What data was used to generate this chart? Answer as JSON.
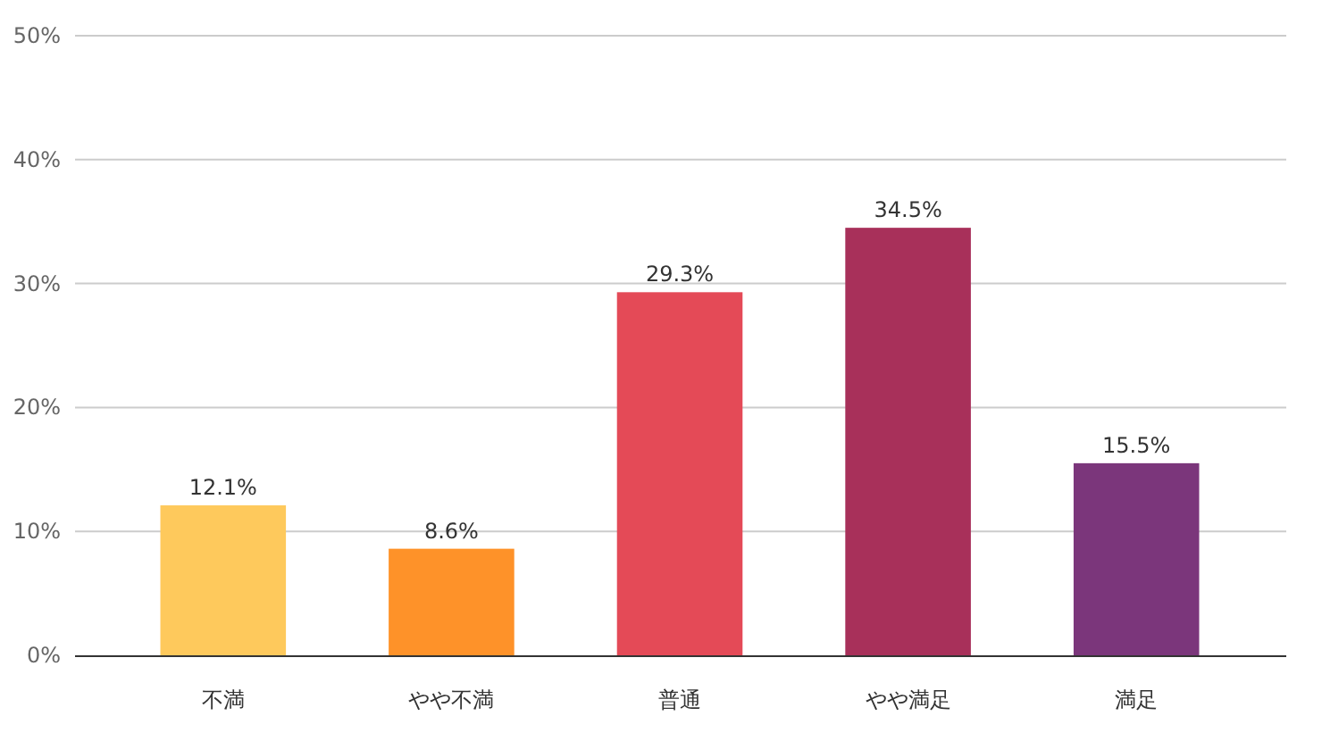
{
  "chart_data": {
    "type": "bar",
    "categories": [
      "不満",
      "やや不満",
      "普通",
      "やや満足",
      "満足"
    ],
    "values": [
      12.1,
      8.6,
      29.3,
      34.5,
      15.5
    ],
    "colors": [
      "#fec95c",
      "#fe9229",
      "#e44a57",
      "#a8305a",
      "#7b367b"
    ],
    "value_labels": [
      "12.1%",
      "8.6%",
      "29.3%",
      "34.5%",
      "15.5%"
    ],
    "ylim": [
      0,
      50
    ],
    "yticks": [
      {
        "value": 0,
        "label": "0%"
      },
      {
        "value": 10,
        "label": "10%"
      },
      {
        "value": 20,
        "label": "20%"
      },
      {
        "value": 30,
        "label": "30%"
      },
      {
        "value": 40,
        "label": "40%"
      },
      {
        "value": 50,
        "label": "50%"
      }
    ],
    "grid": "y"
  }
}
